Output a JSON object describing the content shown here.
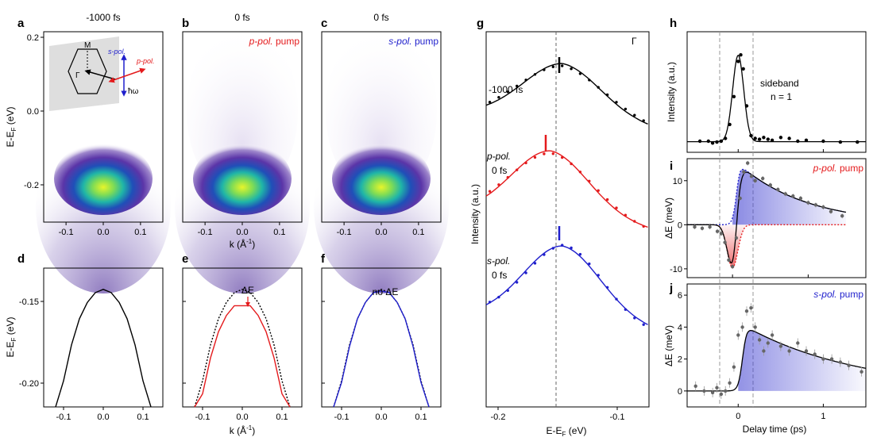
{
  "figure": {
    "panel_letters": [
      "a",
      "b",
      "c",
      "d",
      "e",
      "f",
      "g",
      "h",
      "i",
      "j"
    ],
    "panels_top": [
      {
        "title": "-1000 fs",
        "annotation": ""
      },
      {
        "title": "0 fs",
        "annotation_pol": "p-pol.",
        "annotation_suffix": " pump"
      },
      {
        "title": "0 fs",
        "annotation_pol": "s-pol.",
        "annotation_suffix": " pump"
      }
    ],
    "inset": {
      "M": "M",
      "Gamma": "Γ",
      "s_pol": "s-pol.",
      "p_pol": "p-pol.",
      "hw": "ħω"
    },
    "e_label": "ΔE",
    "f_label": "no ΔE",
    "g_corner": "Γ",
    "g_curve_labels": [
      {
        "pol": "",
        "time": "-1000 fs"
      },
      {
        "pol": "p-pol.",
        "time": "0 fs"
      },
      {
        "pol": "s-pol.",
        "time": "0 fs"
      }
    ],
    "h_label_1": "sideband",
    "h_label_2": "n = 1",
    "i_label_pol": "p-pol.",
    "i_label_suffix": " pump",
    "j_label_pol": "s-pol.",
    "j_label_suffix": " pump",
    "axis_labels": {
      "ef_top": "E-E",
      "ef_bottom": "E-E",
      "k_top": "k (Å",
      "k_bottom": "k (Å",
      "g_y": "Intensity (a.u.)",
      "g_x": "E-E",
      "h_y": "Intensity (a.u.)",
      "i_y": "ΔE (meV)",
      "j_y": "ΔE (meV)",
      "delay": "Delay time (ps)",
      "sub_F": "F",
      "unit_ev": " (eV)",
      "inv_sup": "-1",
      "close_paren": ")"
    }
  },
  "chart_data": [
    {
      "type": "heatmap",
      "panel": "a",
      "title": "-1000 fs",
      "xlabel": "k (Å-1)",
      "ylabel": "E-EF (eV)",
      "xlim": [
        -0.16,
        0.16
      ],
      "ylim": [
        -0.3,
        0.21
      ],
      "xticks": [
        "-0.1",
        "0.0",
        "0.1"
      ],
      "yticks": [
        "0.2",
        "0.0",
        "-0.2"
      ],
      "band_top": -0.15
    },
    {
      "type": "heatmap",
      "panel": "b",
      "title": "0 fs",
      "xlim": [
        -0.16,
        0.16
      ],
      "ylim": [
        -0.3,
        0.21
      ],
      "xticks": [
        "-0.1",
        "0.0",
        "0.1"
      ]
    },
    {
      "type": "heatmap",
      "panel": "c",
      "title": "0 fs",
      "xlim": [
        -0.16,
        0.16
      ],
      "ylim": [
        -0.3,
        0.21
      ],
      "xticks": [
        "-0.1",
        "0.0",
        "0.1"
      ]
    },
    {
      "type": "line",
      "panel": "d",
      "ylabel": "E-EF (eV)",
      "xlim": [
        -0.15,
        0.15
      ],
      "ylim": [
        -0.22,
        -0.135
      ],
      "yticks": [
        "-0.15",
        "-0.20"
      ],
      "xticks": [
        "-0.1",
        "0.0",
        "0.1"
      ],
      "series": [
        {
          "x": [
            -0.12,
            -0.1,
            -0.08,
            -0.06,
            -0.04,
            -0.02,
            0.0,
            0.02,
            0.04,
            0.06,
            0.08,
            0.1,
            0.12
          ],
          "y": [
            -0.236,
            -0.204,
            -0.182,
            -0.166,
            -0.156,
            -0.15,
            -0.148,
            -0.15,
            -0.156,
            -0.166,
            -0.182,
            -0.204,
            -0.236
          ]
        }
      ]
    },
    {
      "type": "line",
      "panel": "e",
      "xlabel": "k (Å-1)",
      "xlim": [
        -0.15,
        0.15
      ],
      "ylim": [
        -0.22,
        -0.135
      ],
      "xticks": [
        "-0.1",
        "0.0",
        "0.1"
      ],
      "series": [
        {
          "style": "dotted",
          "color": "#000000",
          "x": [
            -0.12,
            -0.1,
            -0.08,
            -0.06,
            -0.04,
            -0.02,
            0.0,
            0.02,
            0.04,
            0.06,
            0.08,
            0.1,
            0.12
          ],
          "y": [
            -0.236,
            -0.204,
            -0.182,
            -0.166,
            -0.156,
            -0.15,
            -0.148,
            -0.15,
            -0.156,
            -0.166,
            -0.182,
            -0.204,
            -0.236
          ]
        },
        {
          "color": "#e41a1c",
          "x": [
            -0.12,
            -0.1,
            -0.08,
            -0.06,
            -0.04,
            -0.02,
            0.0,
            0.02,
            0.04,
            0.06,
            0.08,
            0.1,
            0.12
          ],
          "y": [
            -0.245,
            -0.212,
            -0.19,
            -0.174,
            -0.164,
            -0.158,
            -0.158,
            -0.158,
            -0.164,
            -0.174,
            -0.19,
            -0.212,
            -0.245
          ]
        }
      ]
    },
    {
      "type": "line",
      "panel": "f",
      "xlim": [
        -0.15,
        0.15
      ],
      "ylim": [
        -0.22,
        -0.135
      ],
      "xticks": [
        "-0.1",
        "0.0",
        "0.1"
      ],
      "series": [
        {
          "style": "dotted",
          "color": "#000000",
          "x": [
            -0.12,
            -0.1,
            -0.08,
            -0.06,
            -0.04,
            -0.02,
            0.0,
            0.02,
            0.04,
            0.06,
            0.08,
            0.1,
            0.12
          ],
          "y": [
            -0.236,
            -0.204,
            -0.182,
            -0.166,
            -0.156,
            -0.15,
            -0.148,
            -0.15,
            -0.156,
            -0.166,
            -0.182,
            -0.204,
            -0.236
          ]
        },
        {
          "color": "#1f1fcc",
          "x": [
            -0.12,
            -0.1,
            -0.08,
            -0.06,
            -0.04,
            -0.02,
            0.0,
            0.02,
            0.04,
            0.06,
            0.08,
            0.1,
            0.12
          ],
          "y": [
            -0.236,
            -0.205,
            -0.183,
            -0.166,
            -0.156,
            -0.15,
            -0.149,
            -0.15,
            -0.156,
            -0.166,
            -0.183,
            -0.205,
            -0.236
          ]
        }
      ]
    },
    {
      "type": "line",
      "panel": "g",
      "xlabel": "E-EF (eV)",
      "ylabel": "Intensity (a.u.)",
      "xlim": [
        -0.215,
        -0.08
      ],
      "xticks": [
        "-0.2",
        "-0.1"
      ],
      "reference_energy": -0.152,
      "series": [
        {
          "name": "-1000 fs",
          "color": "#000000",
          "peak": -0.152,
          "offset": 2.0
        },
        {
          "name": "p-pol. 0 fs",
          "color": "#e41a1c",
          "peak": -0.162,
          "offset": 1.0
        },
        {
          "name": "s-pol. 0 fs",
          "color": "#1f1fcc",
          "peak": -0.152,
          "offset": 0.0
        }
      ]
    },
    {
      "type": "scatter",
      "panel": "h",
      "ylabel": "Intensity (a.u.)",
      "xlim": [
        -0.6,
        1.5
      ],
      "ylim": [
        -0.1,
        1.2
      ],
      "annotation": "sideband n = 1",
      "x": [
        -0.45,
        -0.35,
        -0.3,
        -0.25,
        -0.2,
        -0.15,
        -0.1,
        -0.05,
        0.0,
        0.03,
        0.06,
        0.1,
        0.15,
        0.2,
        0.25,
        0.3,
        0.35,
        0.4,
        0.5,
        0.6,
        0.7,
        0.8,
        1.0,
        1.2,
        1.4
      ],
      "y": [
        0.02,
        0.02,
        0.0,
        0.01,
        0.02,
        0.05,
        0.2,
        0.5,
        0.88,
        0.95,
        0.8,
        0.4,
        0.08,
        0.05,
        0.04,
        0.06,
        0.04,
        0.03,
        0.06,
        0.05,
        0.02,
        0.03,
        0.02,
        0.01,
        0.01
      ]
    },
    {
      "type": "scatter",
      "panel": "i",
      "ylabel": "ΔE (meV)",
      "xlim": [
        -0.6,
        1.5
      ],
      "ylim": [
        -12,
        15
      ],
      "yticks": [
        "-10",
        "0",
        "10"
      ],
      "annotation": "p-pol. pump",
      "x": [
        -0.5,
        -0.4,
        -0.3,
        -0.2,
        -0.15,
        -0.1,
        -0.05,
        0.0,
        0.05,
        0.1,
        0.15,
        0.2,
        0.25,
        0.3,
        0.4,
        0.5,
        0.6,
        0.7,
        0.8,
        0.9,
        1.0,
        1.1,
        1.2,
        1.3,
        1.45
      ],
      "y": [
        -0.5,
        -0.8,
        -0.5,
        -1.5,
        -2,
        -4,
        -8,
        -9.5,
        -3,
        6,
        12,
        14,
        11,
        10,
        10.5,
        9,
        8,
        7,
        6.5,
        6,
        5,
        4.5,
        4,
        3,
        2
      ]
    },
    {
      "type": "scatter",
      "panel": "j",
      "ylabel": "ΔE (meV)",
      "xlabel": "Delay time (ps)",
      "xlim": [
        -0.6,
        1.5
      ],
      "ylim": [
        -1,
        6.7
      ],
      "yticks": [
        "0",
        "2",
        "4",
        "6"
      ],
      "xticks": [
        "0",
        "1"
      ],
      "annotation": "s-pol. pump",
      "x": [
        -0.5,
        -0.4,
        -0.3,
        -0.25,
        -0.2,
        -0.15,
        -0.1,
        -0.05,
        0.0,
        0.05,
        0.1,
        0.15,
        0.2,
        0.25,
        0.3,
        0.35,
        0.4,
        0.5,
        0.6,
        0.7,
        0.8,
        0.9,
        1.0,
        1.1,
        1.2,
        1.3,
        1.45
      ],
      "y": [
        0.3,
        0.0,
        -0.1,
        0.2,
        -0.2,
        0.0,
        0.5,
        1.5,
        3.5,
        4.0,
        5.0,
        5.2,
        4.0,
        3.2,
        2.5,
        3.0,
        3.5,
        2.8,
        2.5,
        3.0,
        2.5,
        2.3,
        2.0,
        2.0,
        1.8,
        1.6,
        1.2
      ]
    }
  ]
}
